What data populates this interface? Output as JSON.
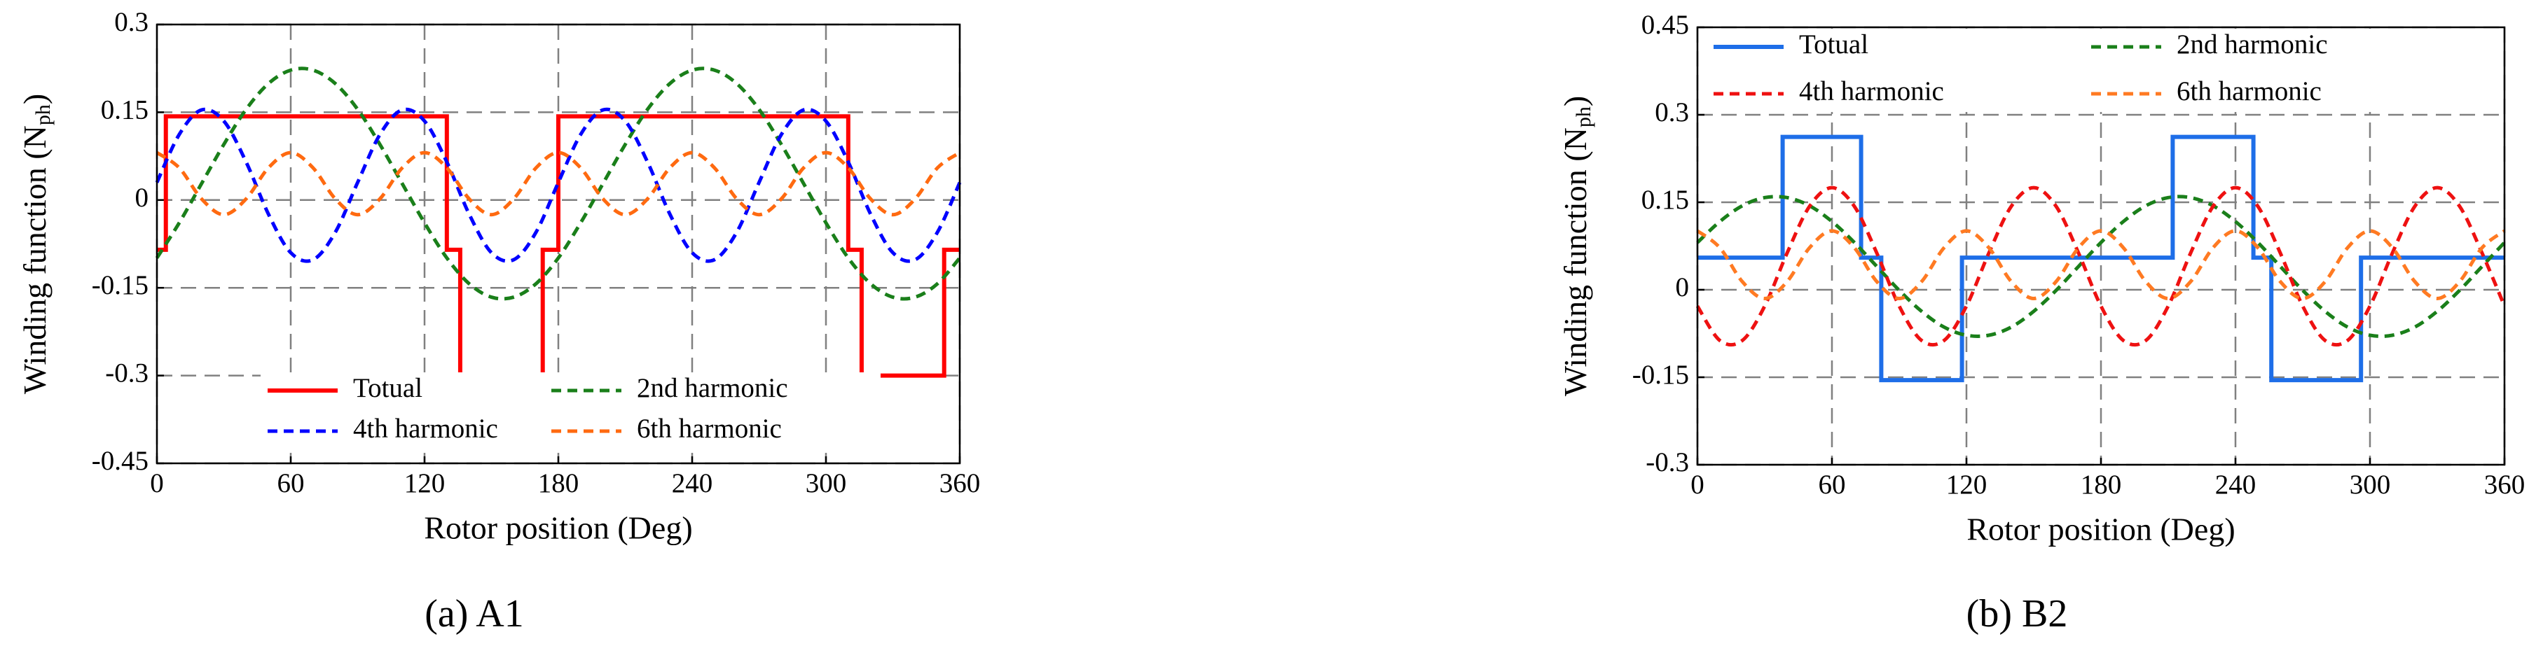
{
  "chart_data": [
    {
      "type": "line",
      "caption": "(a) A1",
      "xlabel": "Rotor position (Deg)",
      "ylabel": {
        "text": "Winding function (N",
        "sub": "ph",
        "end": ")"
      },
      "xlim": [
        0,
        360
      ],
      "xticks": [
        0,
        60,
        120,
        180,
        240,
        300,
        360
      ],
      "ylim": [
        -0.45,
        0.3
      ],
      "yticks": [
        -0.45,
        -0.3,
        -0.15,
        0,
        0.15,
        0.3
      ],
      "grid": true,
      "legend": "lower center",
      "x": [
        0,
        10,
        20,
        30,
        40,
        50,
        60,
        70,
        80,
        90,
        100,
        110,
        120,
        130,
        140,
        150,
        160,
        170,
        180,
        190,
        200,
        210,
        220,
        230,
        240,
        250,
        260,
        270,
        280,
        290,
        300,
        310,
        320,
        330,
        340,
        350,
        360
      ],
      "series": [
        {
          "name": "Totual",
          "color": "#ff0000",
          "style": "solid",
          "x": [
            0,
            4,
            4,
            130,
            130,
            136,
            136,
            173,
            173,
            180,
            180,
            310,
            310,
            316,
            316,
            353,
            353,
            360
          ],
          "values": [
            -0.085,
            -0.085,
            0.143,
            0.143,
            -0.085,
            -0.085,
            -0.3,
            -0.3,
            -0.085,
            -0.085,
            0.143,
            0.143,
            -0.085,
            -0.085,
            -0.3,
            -0.3,
            -0.085,
            -0.085
          ]
        },
        {
          "name": "2nd harmonic",
          "color": "#1a7f1a",
          "style": "dashed",
          "values": [
            -0.099,
            -0.039,
            0.028,
            0.095,
            0.155,
            0.199,
            0.222,
            0.222,
            0.199,
            0.155,
            0.095,
            0.028,
            -0.039,
            -0.099,
            -0.143,
            -0.166,
            -0.166,
            -0.143,
            -0.099,
            -0.039,
            0.028,
            0.095,
            0.155,
            0.199,
            0.222,
            0.222,
            0.199,
            0.155,
            0.095,
            0.028,
            -0.039,
            -0.099,
            -0.143,
            -0.166,
            -0.166,
            -0.143,
            -0.099
          ]
        },
        {
          "name": "4th harmonic",
          "color": "#0000ff",
          "style": "dashed",
          "values": [
            0.03,
            0.112,
            0.154,
            0.135,
            0.065,
            -0.024,
            -0.09,
            -0.102,
            -0.055,
            0.03,
            0.112,
            0.154,
            0.135,
            0.065,
            -0.024,
            -0.09,
            -0.102,
            -0.055,
            0.03,
            0.112,
            0.154,
            0.135,
            0.065,
            -0.024,
            -0.09,
            -0.102,
            -0.055,
            0.03,
            0.112,
            0.154,
            0.135,
            0.065,
            -0.024,
            -0.09,
            -0.102,
            -0.055,
            0.03
          ]
        },
        {
          "name": "6th harmonic",
          "color": "#ff6a10",
          "style": "dashed",
          "values": [
            0.081,
            0.055,
            0.002,
            -0.025,
            0.002,
            0.055,
            0.081,
            0.055,
            0.002,
            -0.025,
            0.002,
            0.055,
            0.081,
            0.055,
            0.002,
            -0.025,
            0.002,
            0.055,
            0.081,
            0.055,
            0.002,
            -0.025,
            0.002,
            0.055,
            0.081,
            0.055,
            0.002,
            -0.025,
            0.002,
            0.055,
            0.081,
            0.055,
            0.002,
            -0.025,
            0.002,
            0.055,
            0.081
          ]
        }
      ]
    },
    {
      "type": "line",
      "caption": "(b) B2",
      "xlabel": "Rotor position (Deg)",
      "ylabel": {
        "text": "Winding function (N",
        "sub": "ph",
        "end": ")"
      },
      "xlim": [
        0,
        360
      ],
      "xticks": [
        0,
        60,
        120,
        180,
        240,
        300,
        360
      ],
      "ylim": [
        -0.3,
        0.45
      ],
      "yticks": [
        -0.3,
        -0.15,
        0,
        0.15,
        0.3,
        0.45
      ],
      "grid": true,
      "legend": "upper left",
      "x": [
        0,
        10,
        20,
        30,
        40,
        50,
        60,
        70,
        80,
        90,
        100,
        110,
        120,
        130,
        140,
        150,
        160,
        170,
        180,
        190,
        200,
        210,
        220,
        230,
        240,
        250,
        260,
        270,
        280,
        290,
        300,
        310,
        320,
        330,
        340,
        350,
        360
      ],
      "series": [
        {
          "name": "Totual",
          "color": "#1e6ee8",
          "style": "solid",
          "x": [
            0,
            38,
            38,
            73,
            73,
            82,
            82,
            118,
            118,
            212,
            212,
            248,
            248,
            256,
            256,
            296,
            296,
            360
          ],
          "values": [
            0.055,
            0.055,
            0.262,
            0.262,
            0.055,
            0.055,
            -0.155,
            -0.155,
            0.055,
            0.055,
            0.262,
            0.262,
            0.055,
            0.055,
            -0.155,
            -0.155,
            0.055,
            0.055
          ]
        },
        {
          "name": "2nd harmonic",
          "color": "#1a7f1a",
          "style": "dashed",
          "values": [
            0.081,
            0.117,
            0.144,
            0.158,
            0.158,
            0.144,
            0.117,
            0.081,
            0.04,
            -0.001,
            -0.037,
            -0.064,
            -0.078,
            -0.078,
            -0.064,
            -0.037,
            -0.001,
            0.04,
            0.081,
            0.117,
            0.144,
            0.158,
            0.158,
            0.144,
            0.117,
            0.081,
            0.04,
            -0.001,
            -0.037,
            -0.064,
            -0.078,
            -0.078,
            -0.064,
            -0.037,
            -0.001,
            0.04,
            0.081
          ]
        },
        {
          "name": "4th harmonic",
          "color": "#ee1111",
          "style": "dashed",
          "values": [
            -0.028,
            -0.087,
            -0.087,
            -0.028,
            0.063,
            0.143,
            0.175,
            0.143,
            0.063,
            -0.028,
            -0.087,
            -0.087,
            -0.028,
            0.063,
            0.143,
            0.175,
            0.143,
            0.063,
            -0.028,
            -0.087,
            -0.087,
            -0.028,
            0.063,
            0.143,
            0.175,
            0.143,
            0.063,
            -0.028,
            -0.087,
            -0.087,
            -0.028,
            0.063,
            0.143,
            0.175,
            0.143,
            0.063,
            -0.028
          ]
        },
        {
          "name": "6th harmonic",
          "color": "#ff7a22",
          "style": "dashed",
          "values": [
            0.101,
            0.072,
            0.014,
            -0.015,
            0.014,
            0.072,
            0.101,
            0.072,
            0.014,
            -0.015,
            0.014,
            0.072,
            0.101,
            0.072,
            0.014,
            -0.015,
            0.014,
            0.072,
            0.101,
            0.072,
            0.014,
            -0.015,
            0.014,
            0.072,
            0.101,
            0.072,
            0.014,
            -0.015,
            0.014,
            0.072,
            0.101,
            0.072,
            0.014,
            -0.015,
            0.014,
            0.072,
            0.101
          ]
        }
      ]
    }
  ]
}
